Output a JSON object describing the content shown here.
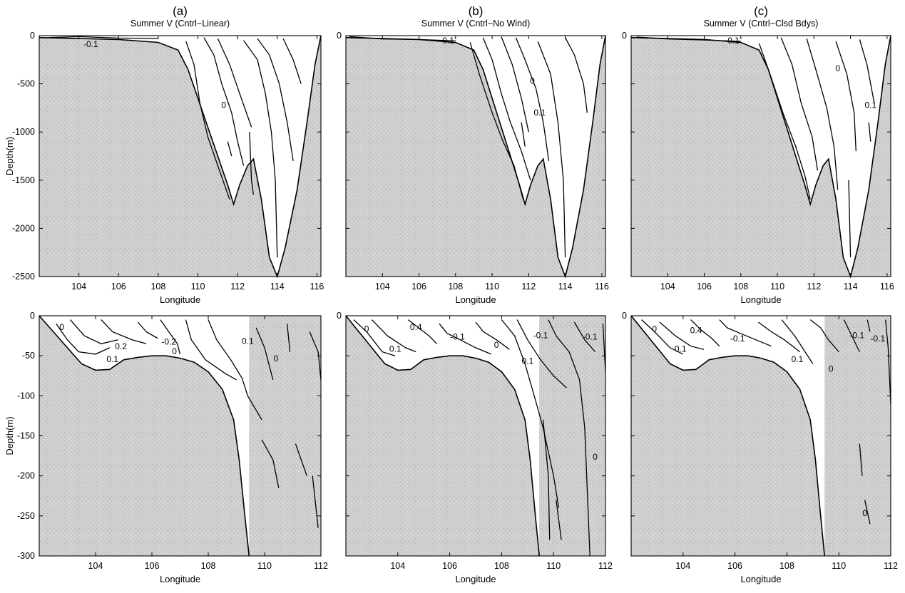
{
  "figure": {
    "shading_color": "#c9c9c9",
    "line_color": "#000000"
  },
  "chart_data": [
    {
      "type": "contour",
      "panel_letter": "(a)",
      "title": "Summer V (Cntrl−Linear)",
      "xlabel": "Longitude",
      "ylabel": "Depth(m)",
      "xlim": [
        102,
        116.2
      ],
      "ylim": [
        -2500,
        0
      ],
      "xticks": [
        "104",
        "106",
        "108",
        "110",
        "112",
        "114",
        "116"
      ],
      "yticks": [
        "0",
        "-500",
        "-1000",
        "-1500",
        "-2000",
        "-2500"
      ],
      "contour_labels": [
        "-0.1",
        "0"
      ],
      "bathymetry": [
        [
          102,
          -20
        ],
        [
          104,
          -30
        ],
        [
          106,
          -40
        ],
        [
          108,
          -70
        ],
        [
          109,
          -150
        ],
        [
          109.5,
          -350
        ],
        [
          110,
          -650
        ],
        [
          110.5,
          -950
        ],
        [
          111,
          -1250
        ],
        [
          111.5,
          -1550
        ],
        [
          111.8,
          -1750
        ],
        [
          112.1,
          -1550
        ],
        [
          112.5,
          -1350
        ],
        [
          112.8,
          -1280
        ],
        [
          113.2,
          -1700
        ],
        [
          113.6,
          -2300
        ],
        [
          114,
          -2520
        ],
        [
          114.4,
          -2200
        ],
        [
          115,
          -1600
        ],
        [
          115.5,
          -900
        ],
        [
          115.9,
          -300
        ],
        [
          116.2,
          0
        ]
      ]
    },
    {
      "type": "contour",
      "panel_letter": "(b)",
      "title": "Summer V (Cntrl−No Wind)",
      "xlabel": "Longitude",
      "ylabel": "",
      "xlim": [
        102,
        116.2
      ],
      "ylim": [
        -2500,
        0
      ],
      "xticks": [
        "104",
        "106",
        "108",
        "110",
        "112",
        "114",
        "116"
      ],
      "yticks": [],
      "contour_labels": [
        "0.1",
        "0",
        "0.1"
      ],
      "bathymetry": [
        [
          102,
          -20
        ],
        [
          104,
          -30
        ],
        [
          106,
          -40
        ],
        [
          108,
          -70
        ],
        [
          109,
          -150
        ],
        [
          109.5,
          -350
        ],
        [
          110,
          -650
        ],
        [
          110.5,
          -950
        ],
        [
          111,
          -1250
        ],
        [
          111.5,
          -1550
        ],
        [
          111.8,
          -1750
        ],
        [
          112.1,
          -1550
        ],
        [
          112.5,
          -1350
        ],
        [
          112.8,
          -1280
        ],
        [
          113.2,
          -1700
        ],
        [
          113.6,
          -2300
        ],
        [
          114,
          -2520
        ],
        [
          114.4,
          -2200
        ],
        [
          115,
          -1600
        ],
        [
          115.5,
          -900
        ],
        [
          115.9,
          -300
        ],
        [
          116.2,
          0
        ]
      ]
    },
    {
      "type": "contour",
      "panel_letter": "(c)",
      "title": "Summer V (Cntrl−Clsd Bdys)",
      "xlabel": "Longitude",
      "ylabel": "",
      "xlim": [
        102,
        116.2
      ],
      "ylim": [
        -2500,
        0
      ],
      "xticks": [
        "104",
        "106",
        "108",
        "110",
        "112",
        "114",
        "116"
      ],
      "yticks": [],
      "contour_labels": [
        "0.1",
        "0",
        "0.1"
      ],
      "bathymetry": [
        [
          102,
          -20
        ],
        [
          104,
          -30
        ],
        [
          106,
          -40
        ],
        [
          108,
          -70
        ],
        [
          109,
          -150
        ],
        [
          109.5,
          -350
        ],
        [
          110,
          -650
        ],
        [
          110.5,
          -950
        ],
        [
          111,
          -1250
        ],
        [
          111.5,
          -1550
        ],
        [
          111.8,
          -1750
        ],
        [
          112.1,
          -1550
        ],
        [
          112.5,
          -1350
        ],
        [
          112.8,
          -1280
        ],
        [
          113.2,
          -1700
        ],
        [
          113.6,
          -2300
        ],
        [
          114,
          -2520
        ],
        [
          114.4,
          -2200
        ],
        [
          115,
          -1600
        ],
        [
          115.5,
          -900
        ],
        [
          115.9,
          -300
        ],
        [
          116.2,
          0
        ]
      ]
    },
    {
      "type": "contour",
      "panel_letter": "",
      "title": "",
      "xlabel": "Longitude",
      "ylabel": "Depth(m)",
      "xlim": [
        102,
        112
      ],
      "ylim": [
        -300,
        0
      ],
      "xticks": [
        "104",
        "106",
        "108",
        "110",
        "112"
      ],
      "yticks": [
        "0",
        "-50",
        "-100",
        "-150",
        "-200",
        "-250",
        "-300"
      ],
      "contour_labels": [
        "0",
        "0.2",
        "0.1",
        "-0.2",
        "0",
        "0.1",
        "0"
      ],
      "bathymetry": [
        [
          102,
          0
        ],
        [
          102.5,
          -20
        ],
        [
          103,
          -40
        ],
        [
          103.5,
          -60
        ],
        [
          104,
          -68
        ],
        [
          104.5,
          -67
        ],
        [
          105,
          -55
        ],
        [
          105.5,
          -52
        ],
        [
          106,
          -50
        ],
        [
          106.5,
          -50
        ],
        [
          107,
          -53
        ],
        [
          107.5,
          -58
        ],
        [
          108,
          -70
        ],
        [
          108.5,
          -92
        ],
        [
          108.9,
          -130
        ],
        [
          109.1,
          -180
        ],
        [
          109.3,
          -250
        ],
        [
          109.45,
          -300
        ]
      ]
    },
    {
      "type": "contour",
      "panel_letter": "",
      "title": "",
      "xlabel": "Longitude",
      "ylabel": "",
      "xlim": [
        102,
        112
      ],
      "ylim": [
        -300,
        0
      ],
      "xticks": [
        "104",
        "106",
        "108",
        "110",
        "112"
      ],
      "yticks": [],
      "contour_labels": [
        "0",
        "0.4",
        "0.1",
        "-0.1",
        "0.1",
        "-0.1",
        "-0.1",
        "0",
        "0"
      ],
      "bathymetry": [
        [
          102,
          0
        ],
        [
          102.5,
          -20
        ],
        [
          103,
          -40
        ],
        [
          103.5,
          -60
        ],
        [
          104,
          -68
        ],
        [
          104.5,
          -67
        ],
        [
          105,
          -55
        ],
        [
          105.5,
          -52
        ],
        [
          106,
          -50
        ],
        [
          106.5,
          -50
        ],
        [
          107,
          -53
        ],
        [
          107.5,
          -58
        ],
        [
          108,
          -70
        ],
        [
          108.5,
          -92
        ],
        [
          108.9,
          -130
        ],
        [
          109.1,
          -180
        ],
        [
          109.3,
          -250
        ],
        [
          109.45,
          -300
        ]
      ]
    },
    {
      "type": "contour",
      "panel_letter": "",
      "title": "",
      "xlabel": "Longitude",
      "ylabel": "",
      "xlim": [
        102,
        112
      ],
      "ylim": [
        -300,
        0
      ],
      "xticks": [
        "104",
        "106",
        "108",
        "110",
        "112"
      ],
      "yticks": [],
      "contour_labels": [
        "0",
        "0.4",
        "0.1",
        "-0.1",
        "0.1",
        "0",
        "-0.1",
        "-0.1",
        "0"
      ],
      "bathymetry": [
        [
          102,
          0
        ],
        [
          102.5,
          -20
        ],
        [
          103,
          -40
        ],
        [
          103.5,
          -60
        ],
        [
          104,
          -68
        ],
        [
          104.5,
          -67
        ],
        [
          105,
          -55
        ],
        [
          105.5,
          -52
        ],
        [
          106,
          -50
        ],
        [
          106.5,
          -50
        ],
        [
          107,
          -53
        ],
        [
          107.5,
          -58
        ],
        [
          108,
          -70
        ],
        [
          108.5,
          -92
        ],
        [
          108.9,
          -130
        ],
        [
          109.1,
          -180
        ],
        [
          109.3,
          -250
        ],
        [
          109.45,
          -300
        ]
      ]
    }
  ]
}
